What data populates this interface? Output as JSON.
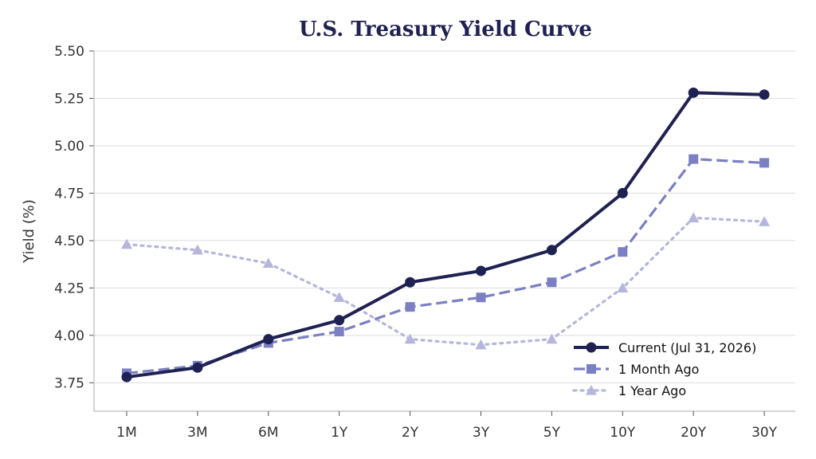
{
  "chart_data": {
    "type": "line",
    "title": "U.S. Treasury Yield Curve",
    "xlabel": "",
    "ylabel": "Yield (%)",
    "categories": [
      "1M",
      "3M",
      "6M",
      "1Y",
      "2Y",
      "3Y",
      "5Y",
      "10Y",
      "20Y",
      "30Y"
    ],
    "ylim": [
      3.6,
      5.5
    ],
    "yticks": [
      "3.75",
      "4.00",
      "4.25",
      "4.50",
      "4.75",
      "5.00",
      "5.25",
      "5.50"
    ],
    "grid": "horizontal",
    "legend_position": "bottom-right",
    "series": [
      {
        "name": "Current (Jul 31, 2026)",
        "values": [
          3.78,
          3.83,
          3.98,
          4.08,
          4.28,
          4.34,
          4.45,
          4.75,
          5.28,
          5.27
        ],
        "color": "#1f2152",
        "line_style": "solid",
        "marker": "circle"
      },
      {
        "name": "1 Month Ago",
        "values": [
          3.8,
          3.84,
          3.96,
          4.02,
          4.15,
          4.2,
          4.28,
          4.44,
          4.93,
          4.91
        ],
        "color": "#7b7fc4",
        "line_style": "dashed",
        "marker": "square"
      },
      {
        "name": "1 Year Ago",
        "values": [
          4.48,
          4.45,
          4.38,
          4.2,
          3.98,
          3.95,
          3.98,
          4.25,
          4.62,
          4.6
        ],
        "color": "#b4b6dc",
        "line_style": "dotted",
        "marker": "triangle"
      }
    ]
  }
}
